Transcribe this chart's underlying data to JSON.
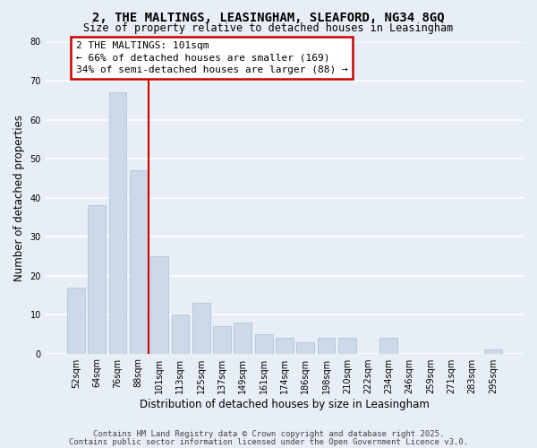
{
  "title": "2, THE MALTINGS, LEASINGHAM, SLEAFORD, NG34 8GQ",
  "subtitle": "Size of property relative to detached houses in Leasingham",
  "xlabel": "Distribution of detached houses by size in Leasingham",
  "ylabel": "Number of detached properties",
  "categories": [
    "52sqm",
    "64sqm",
    "76sqm",
    "88sqm",
    "101sqm",
    "113sqm",
    "125sqm",
    "137sqm",
    "149sqm",
    "161sqm",
    "174sqm",
    "186sqm",
    "198sqm",
    "210sqm",
    "222sqm",
    "234sqm",
    "246sqm",
    "259sqm",
    "271sqm",
    "283sqm",
    "295sqm"
  ],
  "values": [
    17,
    38,
    67,
    47,
    25,
    10,
    13,
    7,
    8,
    5,
    4,
    3,
    4,
    4,
    0,
    4,
    0,
    0,
    0,
    0,
    1
  ],
  "bar_color": "#ccd9e8",
  "bar_edge_color": "#b0c4d8",
  "highlight_index": 4,
  "highlight_color": "#cc0000",
  "ylim": [
    0,
    80
  ],
  "yticks": [
    0,
    10,
    20,
    30,
    40,
    50,
    60,
    70,
    80
  ],
  "annotation_title": "2 THE MALTINGS: 101sqm",
  "annotation_line1": "← 66% of detached houses are smaller (169)",
  "annotation_line2": "34% of semi-detached houses are larger (88) →",
  "annotation_box_color": "#ffffff",
  "annotation_box_edge": "#cc0000",
  "footer1": "Contains HM Land Registry data © Crown copyright and database right 2025.",
  "footer2": "Contains public sector information licensed under the Open Government Licence v3.0.",
  "background_color": "#e8eef5",
  "plot_bg_color": "#e8eef5",
  "grid_color": "#ffffff",
  "title_fontsize": 10,
  "subtitle_fontsize": 8.5,
  "axis_label_fontsize": 8.5,
  "tick_fontsize": 7,
  "annotation_fontsize": 8,
  "footer_fontsize": 6.5
}
